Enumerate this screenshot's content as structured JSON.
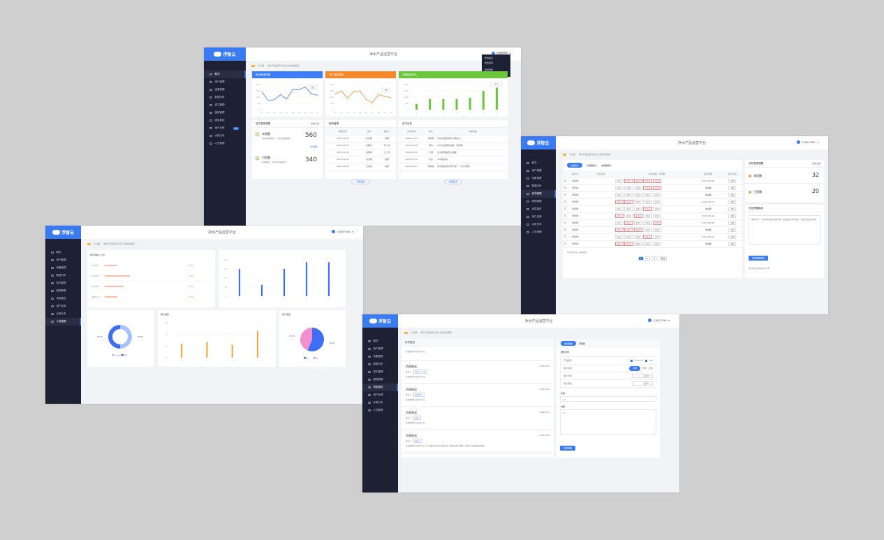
{
  "app": {
    "title": "净水产品运营平台",
    "logo": "浮智云",
    "user": "运营管理员",
    "user2": "13829758L"
  },
  "sidebar": [
    "概况",
    "用户管理",
    "设备管理",
    "数据分析",
    "滤芯管理",
    "报修管理",
    "消息推送",
    "用户反馈",
    "水质分布",
    "人员管理"
  ],
  "sidebar_badge": "12",
  "notice": {
    "tag": "【公告】",
    "text": "净水产品运营平台已上线欢迎使用"
  },
  "user_menu": [
    "修改信息",
    "修改密码",
    "退出登录"
  ],
  "overview": {
    "cards": [
      "每日新增设备",
      "用户活跃曲线",
      "设备使用时长"
    ],
    "repair": {
      "title": "滤芯更换提醒",
      "more": "查看全部",
      "pending_label": "未提醒",
      "pending": "560",
      "pending_desc": "滤芯即将到期用户，请尽快提醒更换",
      "link": "去提醒 ›",
      "done_label": "已提醒",
      "done": "340",
      "done_desc": "已提醒用户，等待用户更换滤芯"
    },
    "repair_table": {
      "title": "报修管理",
      "headers": [
        "报修时间",
        "状态",
        "联系人"
      ],
      "rows": [
        [
          "2018-12-03",
          "未处理",
          "张明"
        ],
        [
          "2018-12-03",
          "处理中",
          "李小龙"
        ],
        [
          "2018-12-03",
          "处理中",
          "王小平"
        ],
        [
          "2018-12-03",
          "未处理",
          "赵明"
        ],
        [
          "2018-12-03",
          "已完成",
          "刘丽"
        ]
      ],
      "more": "查看更多"
    },
    "feedback_table": {
      "title": "用户反馈",
      "headers": [
        "反馈时间",
        "用户",
        "内容摘要"
      ],
      "rows": [
        [
          "2018-12-03",
          "张晓明",
          "滤芯的使用寿命大概多久？"
        ],
        [
          "2018-12-03",
          "李东",
          "APP无法连接设备，请查看！"
        ],
        [
          "2018-12-03",
          "王刚",
          "出水很慢是怎么回事？"
        ],
        [
          "2018-12-03",
          "刘乐",
          "APP很好用"
        ],
        [
          "2018-12-03",
          "李丽丽",
          "净水器的显示屏不亮了，怎么处理？"
        ]
      ],
      "more": "查看更多"
    }
  },
  "filter": {
    "tabs": [
      "全部用户",
      "已提醒用户",
      "未提醒用户"
    ],
    "headers": [
      "",
      "用户名",
      "滤芯状态",
      "即将到期 / 已到期",
      "最近提醒",
      "用户反馈"
    ],
    "filters": [
      "滤芯1",
      "滤芯2",
      "滤芯3",
      "滤芯4",
      "滤芯5"
    ],
    "rows": [
      [
        "张晓明",
        "2017-02-20",
        "查看"
      ],
      [
        "张晓明",
        "未提醒",
        "查看"
      ],
      [
        "张晓明",
        "未提醒",
        "查看"
      ],
      [
        "张晓明",
        "2017-02-13",
        "查看"
      ],
      [
        "张晓明",
        "未提醒",
        "查看"
      ],
      [
        "张晓明",
        "2017-02-13",
        "查看"
      ],
      [
        "张晓明",
        "2017-02-06",
        "查看"
      ],
      [
        "张晓明",
        "未提醒",
        "查看"
      ],
      [
        "张晓明",
        "2017-02-13",
        "查看"
      ],
      [
        "张晓明",
        "未提醒",
        "查看"
      ]
    ],
    "footer": "共100条记录，当前第1页",
    "pages": [
      "1",
      "2",
      "3",
      "前往"
    ],
    "stats": {
      "title": "滤芯更换提醒",
      "more": "查看全部",
      "pending_label": "未提醒",
      "pending": "32",
      "done_label": "已提醒",
      "done": "20"
    },
    "msg": {
      "title": "短信提醒模板",
      "text": "尊敬的用户，您的净水器滤芯即将到期，请及时联系我们更换，以保证您的饮水健康。",
      "button": "发送提醒短信",
      "foot": "短信将发送至所选用户的手机"
    }
  },
  "analysis": {
    "age_title": "用户年龄",
    "age_sub": "(人数)",
    "gender_title": "用户性别",
    "region_title": "用户地区"
  },
  "message": {
    "list_title": "历史推送",
    "intro": "欢迎使用净水云平台产品",
    "items": [
      {
        "title": "消息推送",
        "date": "2018-12-03",
        "meta": "推送人：",
        "tags": [
          "全部",
          "新"
        ],
        "body": "欢迎使用净水云平台产品"
      },
      {
        "title": "消息推送",
        "date": "2018-12-03",
        "meta": "推送人：",
        "tags": [
          "指定用户"
        ],
        "body": "欢迎使用净水云平台产品"
      },
      {
        "title": "消息推送",
        "date": "2018-12-03",
        "meta": "推送人：",
        "tags": [
          "指定"
        ],
        "body": "欢迎使用净水云平台产品"
      },
      {
        "title": "消息推送",
        "date": "2018-12-03",
        "meta": "推送人：",
        "tags": [
          "指定人"
        ],
        "body": "欢迎使用净水云平台产品，净水器的出水经过多重过滤，确保您的饮水健康，如有任何问题请联系客服。"
      }
    ],
    "tabs": [
      "新建推送",
      "草稿箱"
    ],
    "section": "推送对象",
    "fields": [
      "产品型号",
      "用户性别",
      "用户年龄",
      "用户地区"
    ],
    "checks": [
      "Android",
      "iOS"
    ],
    "genders": [
      "全部",
      "男性",
      "女性"
    ],
    "select": "全部",
    "title_label": "标题",
    "title_ph": "标题",
    "content_label": "内容",
    "content_ph": "请输入",
    "submit": "立即推送"
  },
  "chart_data": [
    {
      "type": "line",
      "name_ref": "每日新增设备",
      "x": [
        "01",
        "02",
        "03",
        "04",
        "05",
        "06",
        "07",
        "08",
        "09",
        "10"
      ],
      "values": [
        1400,
        750,
        780,
        1200,
        850,
        1600,
        1600,
        1800,
        1250,
        1150
      ],
      "ylim": [
        0,
        2000
      ],
      "yticks": [
        "0",
        "500",
        "1000",
        "1500",
        "2000"
      ],
      "tooltip": "365",
      "color": "#3d7ef5"
    },
    {
      "type": "line",
      "name_ref": "用户活跃曲线",
      "x": [
        "01",
        "02",
        "03",
        "04",
        "05",
        "06",
        "07",
        "08",
        "09",
        "10"
      ],
      "values": [
        1250,
        1500,
        900,
        1450,
        1500,
        800,
        550,
        1200,
        1050,
        950
      ],
      "ylim": [
        0,
        2000
      ],
      "yticks": [
        "0",
        "500",
        "1000",
        "1500",
        "2000"
      ],
      "tooltip": "365",
      "color": "#f5882a"
    },
    {
      "type": "bar",
      "name_ref": "设备使用时长",
      "categories": [
        "1",
        "2",
        "3",
        "4",
        "5",
        "6",
        "7"
      ],
      "values": [
        450,
        850,
        850,
        850,
        950,
        1500,
        1750
      ],
      "ylim": [
        0,
        2000
      ],
      "yticks": [
        "0",
        "500",
        "1000",
        "1500",
        "2000"
      ],
      "tooltip": "1178",
      "color": "#6cc63c"
    },
    {
      "type": "hbar",
      "categories": [
        "0-18岁",
        "19-30岁",
        "31-45岁",
        "46岁以上"
      ],
      "values": [
        10,
        20,
        15,
        10
      ],
      "labels": [
        "10%",
        "20%",
        "15%",
        "10%"
      ],
      "xlim": [
        0,
        100
      ],
      "color": "#f47b5a"
    },
    {
      "type": "bar",
      "categories": [
        "1",
        "2",
        "3",
        "4",
        "5"
      ],
      "values": [
        60,
        25,
        60,
        75,
        75
      ],
      "ylim": [
        0,
        80
      ],
      "yticks": [
        "0",
        "20",
        "40",
        "60",
        "80"
      ],
      "color": "#3d6ef5"
    },
    {
      "type": "pie",
      "donut": true,
      "series": [
        {
          "name": "Android",
          "value": 50,
          "label": "50.0%",
          "color": "#a9c2fb"
        },
        {
          "name": "iOS",
          "value": 50,
          "label": "50.0%",
          "color": "#3d6ef5"
        }
      ]
    },
    {
      "type": "bar",
      "categories": [
        "1",
        "2",
        "3",
        "4"
      ],
      "values": [
        24,
        27,
        22,
        46
      ],
      "ylim": [
        0,
        60
      ],
      "yticks": [
        "0",
        "20",
        "40",
        "60"
      ],
      "color": "#f5a030"
    },
    {
      "type": "pie",
      "donut": false,
      "series": [
        {
          "name": "男",
          "value": 56.3,
          "label": "56.3%",
          "color": "#3d6ef5"
        },
        {
          "name": "女",
          "value": 43.7,
          "label": "43.7%",
          "color": "#f28fce"
        }
      ]
    }
  ]
}
